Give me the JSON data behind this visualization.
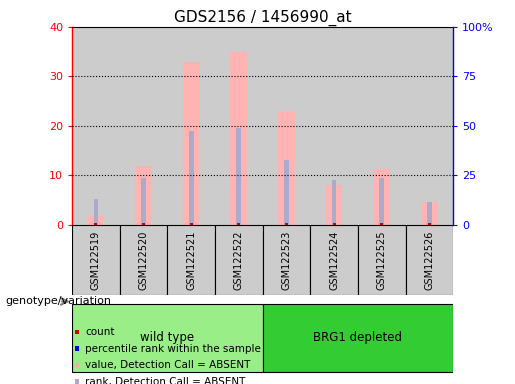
{
  "title": "GDS2156 / 1456990_at",
  "samples": [
    "GSM122519",
    "GSM122520",
    "GSM122521",
    "GSM122522",
    "GSM122523",
    "GSM122524",
    "GSM122525",
    "GSM122526"
  ],
  "pink_bar_values": [
    2.0,
    11.8,
    33.0,
    35.0,
    23.0,
    8.0,
    11.2,
    4.5
  ],
  "blue_bar_values": [
    5.2,
    9.5,
    19.0,
    19.5,
    13.0,
    9.0,
    9.5,
    4.5
  ],
  "red_count_values": [
    0.4,
    0.4,
    0.4,
    0.4,
    0.4,
    0.4,
    0.4,
    0.4
  ],
  "left_ylim": [
    0,
    40
  ],
  "right_ylim": [
    0,
    100
  ],
  "left_yticks": [
    0,
    10,
    20,
    30,
    40
  ],
  "right_yticks": [
    0,
    25,
    50,
    75,
    100
  ],
  "right_yticklabels": [
    "0",
    "25",
    "50",
    "75",
    "100%"
  ],
  "wild_type_label": "wild type",
  "brg1_label": "BRG1 depleted",
  "genotype_label": "genotype/variation",
  "legend_labels": [
    "count",
    "percentile rank within the sample",
    "value, Detection Call = ABSENT",
    "rank, Detection Call = ABSENT"
  ],
  "legend_colors": [
    "#cc0000",
    "#0000cc",
    "#ffaaaa",
    "#aaaacc"
  ],
  "pink_color": "#ffb3b3",
  "blue_color": "#aaaacc",
  "red_color": "#cc0000",
  "dark_blue_color": "#0000cc",
  "bg_color": "#cccccc",
  "wt_green": "#99ee88",
  "brg1_green": "#33cc33",
  "plot_bg": "#ffffff"
}
